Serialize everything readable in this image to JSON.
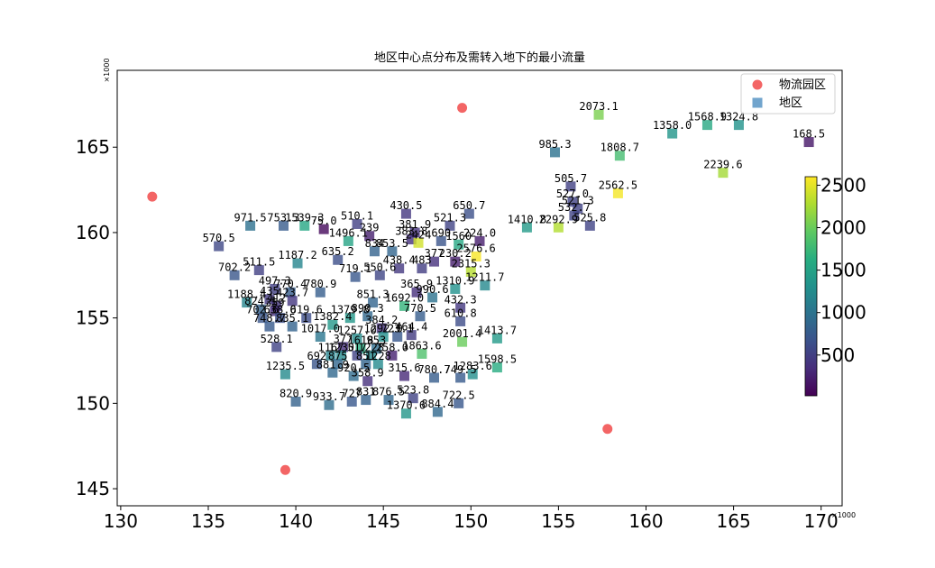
{
  "chart_data": {
    "type": "scatter",
    "title": "地区中心点分布及需转入地下的最小流量",
    "x_offset_label": "×1000",
    "y_offset_label": "×1000",
    "xlim": [
      129.8,
      171.2
    ],
    "ylim": [
      144.0,
      169.5
    ],
    "x_ticks": [
      130,
      135,
      140,
      145,
      150,
      155,
      160,
      165,
      170
    ],
    "y_ticks": [
      145,
      150,
      155,
      160,
      165
    ],
    "legend": {
      "position": "top-right",
      "entries": [
        {
          "name": "物流园区",
          "color": "#f03e3e",
          "marker": "circle"
        },
        {
          "name": "地区",
          "color": "#4f8fc0",
          "marker": "square"
        }
      ]
    },
    "colorbar": {
      "colormap": "viridis",
      "min": 20,
      "max": 2600,
      "ticks": [
        500,
        1000,
        1500,
        2000,
        2500
      ]
    },
    "series": [
      {
        "name": "物流园区",
        "points": [
          {
            "x": 131.8,
            "y": 162.1
          },
          {
            "x": 149.5,
            "y": 167.3
          },
          {
            "x": 157.8,
            "y": 148.5
          },
          {
            "x": 139.4,
            "y": 146.1
          }
        ]
      },
      {
        "name": "地区",
        "points": [
          {
            "x": 157.3,
            "y": 166.9,
            "v": 2073.1,
            "label": "2073.1"
          },
          {
            "x": 161.5,
            "y": 165.8,
            "v": 1358.0,
            "label": "1358.0"
          },
          {
            "x": 163.5,
            "y": 166.3,
            "v": 1568.9,
            "label": "1568.9"
          },
          {
            "x": 165.3,
            "y": 166.3,
            "v": 1324.8,
            "label": "1324.8"
          },
          {
            "x": 169.3,
            "y": 165.3,
            "v": 168.5,
            "label": "168.5"
          },
          {
            "x": 154.8,
            "y": 164.7,
            "v": 985.3,
            "label": "985.3"
          },
          {
            "x": 158.5,
            "y": 164.5,
            "v": 1808.7,
            "label": "1808.7"
          },
          {
            "x": 164.4,
            "y": 163.5,
            "v": 2239.6,
            "label": "2239.6"
          },
          {
            "x": 155.7,
            "y": 162.7,
            "v": 505.7,
            "label": "505.7"
          },
          {
            "x": 158.4,
            "y": 162.3,
            "v": 2562.5,
            "label": "2562.5"
          },
          {
            "x": 155.8,
            "y": 161.8,
            "v": 527.0,
            "label": "527.0"
          },
          {
            "x": 156.1,
            "y": 161.4,
            "v": 521.3,
            "label": "521.3"
          },
          {
            "x": 155.9,
            "y": 161.0,
            "v": 532.7,
            "label": "532.7"
          },
          {
            "x": 153.2,
            "y": 160.3,
            "v": 1410.8,
            "label": "1410.8"
          },
          {
            "x": 155.0,
            "y": 160.3,
            "v": 2292.9,
            "label": "2292.9"
          },
          {
            "x": 156.8,
            "y": 160.4,
            "v": 525.8,
            "label": "525.8"
          },
          {
            "x": 137.4,
            "y": 160.4,
            "v": 971.5,
            "label": "971.5"
          },
          {
            "x": 139.3,
            "y": 160.4,
            "v": 753.3,
            "label": "753.3"
          },
          {
            "x": 140.5,
            "y": 160.4,
            "v": 1539.3,
            "label": "1539.3"
          },
          {
            "x": 141.6,
            "y": 160.2,
            "v": 75.0,
            "label": "75.0"
          },
          {
            "x": 143.5,
            "y": 160.5,
            "v": 510.1,
            "label": "510.1"
          },
          {
            "x": 146.3,
            "y": 161.1,
            "v": 430.5,
            "label": "430.5"
          },
          {
            "x": 149.9,
            "y": 161.1,
            "v": 650.7,
            "label": "650.7"
          },
          {
            "x": 148.8,
            "y": 160.4,
            "v": 521.3,
            "label": "521.3"
          },
          {
            "x": 146.8,
            "y": 160.0,
            "v": 381.9,
            "label": "381.9"
          },
          {
            "x": 144.2,
            "y": 159.8,
            "v": 239.0,
            "label": "239"
          },
          {
            "x": 143.0,
            "y": 159.5,
            "v": 1496.1,
            "label": "1496.1"
          },
          {
            "x": 146.6,
            "y": 159.6,
            "v": 383.8,
            "label": "383.8"
          },
          {
            "x": 147.0,
            "y": 159.4,
            "v": 2424.0,
            "label": "2424"
          },
          {
            "x": 148.3,
            "y": 159.5,
            "v": 690.0,
            "label": "690"
          },
          {
            "x": 149.3,
            "y": 159.3,
            "v": 1560.0,
            "label": "1560"
          },
          {
            "x": 150.5,
            "y": 159.5,
            "v": 224.0,
            "label": "224.0"
          },
          {
            "x": 135.6,
            "y": 159.2,
            "v": 570.5,
            "label": "570.5"
          },
          {
            "x": 144.5,
            "y": 158.9,
            "v": 834.0,
            "label": "834"
          },
          {
            "x": 145.5,
            "y": 158.9,
            "v": 853.5,
            "label": "853.5"
          },
          {
            "x": 142.4,
            "y": 158.4,
            "v": 635.2,
            "label": "635.2"
          },
          {
            "x": 150.3,
            "y": 158.6,
            "v": 2576.6,
            "label": "2576.6"
          },
          {
            "x": 147.9,
            "y": 158.3,
            "v": 377.0,
            "label": "377"
          },
          {
            "x": 149.1,
            "y": 158.3,
            "v": 230.2,
            "label": "230.2"
          },
          {
            "x": 140.1,
            "y": 158.2,
            "v": 1187.2,
            "label": "1187.2"
          },
          {
            "x": 137.9,
            "y": 157.8,
            "v": 511.5,
            "label": "511.5"
          },
          {
            "x": 136.5,
            "y": 157.5,
            "v": 702.2,
            "label": "702.2"
          },
          {
            "x": 145.9,
            "y": 157.9,
            "v": 438.4,
            "label": "438.4"
          },
          {
            "x": 147.2,
            "y": 157.9,
            "v": 483.0,
            "label": "483"
          },
          {
            "x": 150.0,
            "y": 157.7,
            "v": 2315.3,
            "label": "2315.3"
          },
          {
            "x": 143.4,
            "y": 157.4,
            "v": 719.1,
            "label": "719.1"
          },
          {
            "x": 144.8,
            "y": 157.5,
            "v": 550.6,
            "label": "550.6"
          },
          {
            "x": 150.8,
            "y": 156.9,
            "v": 1211.7,
            "label": "1211.7"
          },
          {
            "x": 138.8,
            "y": 156.7,
            "v": 497.3,
            "label": "497.3"
          },
          {
            "x": 139.7,
            "y": 156.5,
            "v": 770.4,
            "label": "770.4"
          },
          {
            "x": 141.4,
            "y": 156.5,
            "v": 780.9,
            "label": "780.9"
          },
          {
            "x": 146.9,
            "y": 156.5,
            "v": 365.9,
            "label": "365.9"
          },
          {
            "x": 149.1,
            "y": 156.7,
            "v": 1310.9,
            "label": "1310.9"
          },
          {
            "x": 138.5,
            "y": 156.1,
            "v": 435.0,
            "label": "435"
          },
          {
            "x": 139.8,
            "y": 156.0,
            "v": 423.7,
            "label": "423.7"
          },
          {
            "x": 147.8,
            "y": 156.2,
            "v": 990.6,
            "label": "990.6"
          },
          {
            "x": 137.2,
            "y": 155.9,
            "v": 1188.4,
            "label": "1188.4"
          },
          {
            "x": 138.9,
            "y": 155.7,
            "v": 412.0,
            "label": "412"
          },
          {
            "x": 144.4,
            "y": 155.9,
            "v": 851.3,
            "label": "851.3"
          },
          {
            "x": 146.2,
            "y": 155.7,
            "v": 1692.0,
            "label": "1692.0"
          },
          {
            "x": 149.4,
            "y": 155.6,
            "v": 432.3,
            "label": "432.3"
          },
          {
            "x": 138.0,
            "y": 155.5,
            "v": 824.1,
            "label": "824.1"
          },
          {
            "x": 138.8,
            "y": 155.4,
            "v": 359.0,
            "label": "359"
          },
          {
            "x": 144.1,
            "y": 155.1,
            "v": 890.3,
            "label": "890.3"
          },
          {
            "x": 147.1,
            "y": 155.1,
            "v": 770.5,
            "label": "770.5"
          },
          {
            "x": 138.1,
            "y": 155.0,
            "v": 702.6,
            "label": "702.6"
          },
          {
            "x": 139.1,
            "y": 155.0,
            "v": 638.0,
            "label": "638.0"
          },
          {
            "x": 140.6,
            "y": 155.0,
            "v": 619.6,
            "label": "619.6"
          },
          {
            "x": 143.1,
            "y": 155.0,
            "v": 1379.8,
            "label": "1379.8"
          },
          {
            "x": 149.4,
            "y": 154.8,
            "v": 610.8,
            "label": "610.8"
          },
          {
            "x": 138.5,
            "y": 154.5,
            "v": 748.7,
            "label": "748.7"
          },
          {
            "x": 139.8,
            "y": 154.5,
            "v": 835.1,
            "label": "835.1"
          },
          {
            "x": 142.1,
            "y": 154.6,
            "v": 1382.4,
            "label": "1382.4"
          },
          {
            "x": 144.9,
            "y": 154.4,
            "v": 384.2,
            "label": "384.2"
          },
          {
            "x": 146.6,
            "y": 154.0,
            "v": 464.4,
            "label": "464.4"
          },
          {
            "x": 141.4,
            "y": 153.9,
            "v": 1017.0,
            "label": "1017.0"
          },
          {
            "x": 143.5,
            "y": 153.8,
            "v": 1257.0,
            "label": "1257.0"
          },
          {
            "x": 145.0,
            "y": 153.9,
            "v": 1292.0,
            "label": "1292.0"
          },
          {
            "x": 145.8,
            "y": 153.9,
            "v": 723.1,
            "label": "723.1"
          },
          {
            "x": 149.5,
            "y": 153.6,
            "v": 2001.4,
            "label": "2001.4"
          },
          {
            "x": 151.5,
            "y": 153.8,
            "v": 1413.7,
            "label": "1413.7"
          },
          {
            "x": 138.9,
            "y": 153.3,
            "v": 528.1,
            "label": "528.1"
          },
          {
            "x": 142.7,
            "y": 153.3,
            "v": 377.0,
            "label": "377"
          },
          {
            "x": 143.7,
            "y": 153.2,
            "v": 1618.0,
            "label": "1618"
          },
          {
            "x": 144.6,
            "y": 153.2,
            "v": 953.0,
            "label": "953"
          },
          {
            "x": 142.0,
            "y": 152.8,
            "v": 1167.0,
            "label": "1167"
          },
          {
            "x": 142.6,
            "y": 152.8,
            "v": 1230.0,
            "label": "1230"
          },
          {
            "x": 143.5,
            "y": 152.8,
            "v": 517.0,
            "label": "517"
          },
          {
            "x": 144.3,
            "y": 152.8,
            "v": 1228.0,
            "label": "1228"
          },
          {
            "x": 145.5,
            "y": 152.8,
            "v": 258.0,
            "label": "258.0"
          },
          {
            "x": 147.2,
            "y": 152.9,
            "v": 1863.6,
            "label": "1863.6"
          },
          {
            "x": 141.2,
            "y": 152.3,
            "v": 692.0,
            "label": "692"
          },
          {
            "x": 142.4,
            "y": 152.3,
            "v": 875.0,
            "label": "875"
          },
          {
            "x": 144.0,
            "y": 152.3,
            "v": 851.0,
            "label": "851"
          },
          {
            "x": 144.7,
            "y": 152.3,
            "v": 1228.0,
            "label": "1228"
          },
          {
            "x": 139.4,
            "y": 151.7,
            "v": 1235.5,
            "label": "1235.5"
          },
          {
            "x": 142.1,
            "y": 151.8,
            "v": 881.9,
            "label": "881.9"
          },
          {
            "x": 143.3,
            "y": 151.6,
            "v": 920.5,
            "label": "920.5"
          },
          {
            "x": 144.1,
            "y": 151.3,
            "v": 358.9,
            "label": "358.9"
          },
          {
            "x": 146.2,
            "y": 151.6,
            "v": 315.6,
            "label": "315.6"
          },
          {
            "x": 147.9,
            "y": 151.5,
            "v": 780.7,
            "label": "780.7"
          },
          {
            "x": 149.4,
            "y": 151.5,
            "v": 749.5,
            "label": "749.5"
          },
          {
            "x": 151.5,
            "y": 152.1,
            "v": 1598.5,
            "label": "1598.5"
          },
          {
            "x": 150.1,
            "y": 151.7,
            "v": 1283.6,
            "label": "1283.6"
          },
          {
            "x": 140.0,
            "y": 150.1,
            "v": 820.9,
            "label": "820.9"
          },
          {
            "x": 141.9,
            "y": 149.9,
            "v": 933.7,
            "label": "933.7"
          },
          {
            "x": 143.2,
            "y": 150.1,
            "v": 727.0,
            "label": "727"
          },
          {
            "x": 144.0,
            "y": 150.2,
            "v": 831.0,
            "label": "831"
          },
          {
            "x": 145.3,
            "y": 150.2,
            "v": 876.5,
            "label": "876.5"
          },
          {
            "x": 146.7,
            "y": 150.3,
            "v": 523.8,
            "label": "523.8"
          },
          {
            "x": 146.3,
            "y": 149.4,
            "v": 1370.6,
            "label": "1370.6"
          },
          {
            "x": 148.1,
            "y": 149.5,
            "v": 884.4,
            "label": "884.4"
          },
          {
            "x": 149.3,
            "y": 150.0,
            "v": 722.5,
            "label": "722.5"
          }
        ]
      }
    ]
  }
}
